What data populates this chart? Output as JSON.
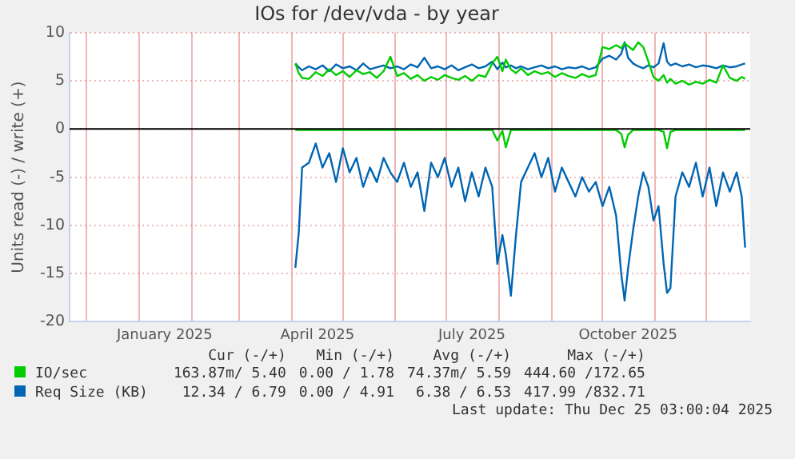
{
  "chart_data": {
    "type": "line",
    "title": "IOs for /dev/vda - by year",
    "ylabel": "Units read (-) / write (+)",
    "x": [
      "2025-04-03",
      "2025-04-05",
      "2025-04-07",
      "2025-04-11",
      "2025-04-15",
      "2025-04-19",
      "2025-04-23",
      "2025-04-27",
      "2025-05-01",
      "2025-05-05",
      "2025-05-09",
      "2025-05-13",
      "2025-05-17",
      "2025-05-21",
      "2025-05-25",
      "2025-05-29",
      "2025-06-02",
      "2025-06-06",
      "2025-06-10",
      "2025-06-14",
      "2025-06-18",
      "2025-06-22",
      "2025-06-26",
      "2025-06-30",
      "2025-07-04",
      "2025-07-08",
      "2025-07-12",
      "2025-07-16",
      "2025-07-20",
      "2025-07-24",
      "2025-07-28",
      "2025-07-31",
      "2025-08-03",
      "2025-08-05",
      "2025-08-08",
      "2025-08-11",
      "2025-08-14",
      "2025-08-18",
      "2025-08-22",
      "2025-08-26",
      "2025-08-30",
      "2025-09-03",
      "2025-09-07",
      "2025-09-11",
      "2025-09-15",
      "2025-09-19",
      "2025-09-23",
      "2025-09-27",
      "2025-10-01",
      "2025-10-05",
      "2025-10-09",
      "2025-10-12",
      "2025-10-14",
      "2025-10-16",
      "2025-10-19",
      "2025-10-22",
      "2025-10-25",
      "2025-10-28",
      "2025-10-31",
      "2025-11-03",
      "2025-11-06",
      "2025-11-08",
      "2025-11-10",
      "2025-11-13",
      "2025-11-17",
      "2025-11-21",
      "2025-11-25",
      "2025-11-29",
      "2025-12-03",
      "2025-12-07",
      "2025-12-11",
      "2025-12-15",
      "2025-12-19",
      "2025-12-22",
      "2025-12-24"
    ],
    "series": [
      {
        "name": "IO/sec",
        "color": "#00cc00",
        "values": [
          6.8,
          5.8,
          5.3,
          5.2,
          5.9,
          5.5,
          6.2,
          5.6,
          6.0,
          5.4,
          6.1,
          5.7,
          5.9,
          5.3,
          6.0,
          7.5,
          5.5,
          5.8,
          5.2,
          5.6,
          5.0,
          5.4,
          5.1,
          5.6,
          5.3,
          5.1,
          5.5,
          5.0,
          5.6,
          5.4,
          6.8,
          7.5,
          6.0,
          7.2,
          6.2,
          5.8,
          6.3,
          5.6,
          6.0,
          5.7,
          5.9,
          5.4,
          5.8,
          5.5,
          5.3,
          5.7,
          5.4,
          5.6,
          8.5,
          8.3,
          8.7,
          8.4,
          8.9,
          8.6,
          8.2,
          9.0,
          8.5,
          7.0,
          5.4,
          5.0,
          5.6,
          4.8,
          5.2,
          4.7,
          5.0,
          4.6,
          4.9,
          4.7,
          5.1,
          4.8,
          6.6,
          5.3,
          5.0,
          5.4,
          5.2
        ]
      },
      {
        "color": "#00cc00",
        "values": [
          -0.1,
          -0.1,
          -0.1,
          -0.1,
          -0.1,
          -0.1,
          -0.1,
          -0.1,
          -0.1,
          -0.1,
          -0.1,
          -0.1,
          -0.1,
          -0.1,
          -0.1,
          -0.1,
          -0.1,
          -0.1,
          -0.1,
          -0.1,
          -0.1,
          -0.1,
          -0.1,
          -0.1,
          -0.1,
          -0.1,
          -0.1,
          -0.1,
          -0.1,
          -0.1,
          -0.1,
          -1.2,
          -0.2,
          -1.9,
          -0.1,
          -0.1,
          -0.1,
          -0.1,
          -0.1,
          -0.1,
          -0.1,
          -0.1,
          -0.1,
          -0.1,
          -0.1,
          -0.1,
          -0.1,
          -0.1,
          -0.1,
          -0.1,
          -0.1,
          -0.5,
          -1.9,
          -0.6,
          -0.1,
          -0.1,
          -0.1,
          -0.1,
          -0.1,
          -0.1,
          -0.3,
          -2.0,
          -0.3,
          -0.1,
          -0.1,
          -0.1,
          -0.1,
          -0.1,
          -0.1,
          -0.1,
          -0.1,
          -0.1,
          -0.1,
          -0.1,
          -0.1
        ]
      },
      {
        "name": "Req Size (KB)",
        "color": "#0066b3",
        "values": [
          6.8,
          6.4,
          6.1,
          6.5,
          6.2,
          6.6,
          6.0,
          6.7,
          6.3,
          6.5,
          6.1,
          6.8,
          6.2,
          6.4,
          6.6,
          6.3,
          6.5,
          6.2,
          6.7,
          6.4,
          7.4,
          6.3,
          6.5,
          6.2,
          6.6,
          6.1,
          6.4,
          6.7,
          6.3,
          6.5,
          7.0,
          6.2,
          6.9,
          6.4,
          6.6,
          6.3,
          6.5,
          6.2,
          6.4,
          6.6,
          6.3,
          6.5,
          6.2,
          6.4,
          6.3,
          6.5,
          6.2,
          6.4,
          7.3,
          7.6,
          7.2,
          7.8,
          9.0,
          7.4,
          6.8,
          6.5,
          6.3,
          6.6,
          6.4,
          6.8,
          8.9,
          7.0,
          6.6,
          6.8,
          6.5,
          6.7,
          6.4,
          6.6,
          6.5,
          6.3,
          6.6,
          6.4,
          6.5,
          6.7,
          6.8
        ]
      },
      {
        "color": "#0066b3",
        "values": [
          -14.4,
          -10.8,
          -4.0,
          -3.5,
          -1.5,
          -4.0,
          -2.5,
          -5.5,
          -2.0,
          -4.5,
          -3.0,
          -6.0,
          -4.0,
          -5.5,
          -3.0,
          -4.5,
          -5.5,
          -3.5,
          -6.0,
          -4.5,
          -8.5,
          -3.5,
          -5.0,
          -3.0,
          -6.0,
          -4.0,
          -7.5,
          -4.5,
          -7.0,
          -4.0,
          -6.0,
          -14.0,
          -11.0,
          -13.0,
          -17.3,
          -11.0,
          -5.5,
          -4.0,
          -2.5,
          -5.0,
          -3.0,
          -6.5,
          -4.0,
          -5.5,
          -7.0,
          -5.0,
          -6.5,
          -5.5,
          -8.0,
          -6.0,
          -9.0,
          -15.0,
          -17.8,
          -14.5,
          -10.5,
          -7.0,
          -4.5,
          -6.0,
          -9.5,
          -8.0,
          -14.0,
          -17.0,
          -16.5,
          -7.0,
          -4.5,
          -6.0,
          -3.5,
          -7.0,
          -4.0,
          -8.0,
          -4.5,
          -6.5,
          -4.5,
          -7.0,
          -12.3
        ]
      }
    ],
    "xlim": [
      "2024-11-21",
      "2025-12-27"
    ],
    "xticks": [
      {
        "value": "2024-12-01",
        "label": null
      },
      {
        "value": "2025-01-01",
        "label": null
      },
      {
        "value": "2025-01-16",
        "label": "January 2025"
      },
      {
        "value": "2025-02-01",
        "label": null
      },
      {
        "value": "2025-03-01",
        "label": null
      },
      {
        "value": "2025-04-01",
        "label": null
      },
      {
        "value": "2025-04-16",
        "label": "April 2025"
      },
      {
        "value": "2025-05-01",
        "label": null
      },
      {
        "value": "2025-06-01",
        "label": null
      },
      {
        "value": "2025-07-01",
        "label": null
      },
      {
        "value": "2025-07-16",
        "label": "July 2025"
      },
      {
        "value": "2025-08-01",
        "label": null
      },
      {
        "value": "2025-09-01",
        "label": null
      },
      {
        "value": "2025-10-01",
        "label": null
      },
      {
        "value": "2025-10-16",
        "label": "October 2025"
      },
      {
        "value": "2025-11-01",
        "label": null
      },
      {
        "value": "2025-12-01",
        "label": null
      }
    ],
    "ylim": [
      -20,
      10
    ],
    "yticks": [
      -20,
      -15,
      -10,
      -5,
      0,
      5,
      10
    ],
    "ref_lines": [
      {
        "axis": "y",
        "value": 0,
        "color": "#000000"
      }
    ],
    "grid": true,
    "legend": "bottom",
    "annotations": [
      "Cur (-/+)",
      "Min (-/+)",
      "Avg (-/+)",
      "Max (-/+)",
      "163.87m/ 5.40",
      "0.00 / 1.78",
      "74.37m/ 5.59",
      "444.60 /172.65",
      "12.34 / 6.79",
      "0.00 / 4.91",
      "6.38 / 6.53",
      "417.99 /832.71",
      "Last update: Thu Dec 25 03:00:04 2025"
    ]
  }
}
